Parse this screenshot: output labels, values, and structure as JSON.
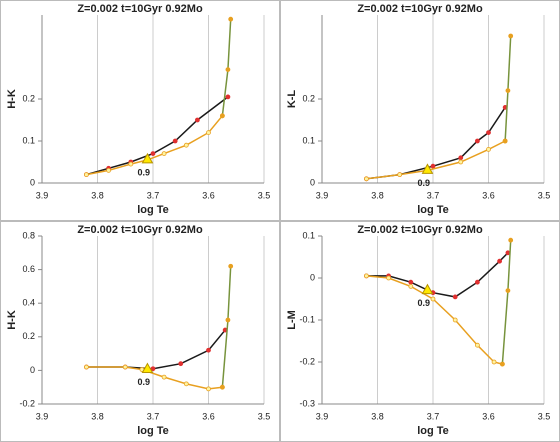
{
  "chart_data": [
    {
      "type": "line",
      "title": "Z=0.002  t=10Gyr 0.92Mo",
      "xlabel": "log Te",
      "ylabel": "H-K",
      "xlim": [
        3.9,
        3.5
      ],
      "xticks": [
        3.9,
        3.8,
        3.7,
        3.6,
        3.5
      ],
      "ylim": [
        0,
        0.4
      ],
      "yticks": [
        0,
        0.1,
        0.2
      ],
      "grid": "x",
      "series": [
        {
          "color": "#1a1a1a",
          "marker_color": "#e03030",
          "x": [
            3.82,
            3.78,
            3.74,
            3.7,
            3.66,
            3.62,
            3.565
          ],
          "values": [
            0.02,
            0.035,
            0.05,
            0.07,
            0.1,
            0.15,
            0.205
          ]
        },
        {
          "color": "#e8a020",
          "marker_color": "#e8a020",
          "x": [
            3.82,
            3.78,
            3.74,
            3.71,
            3.68,
            3.64,
            3.6,
            3.575
          ],
          "values": [
            0.02,
            0.03,
            0.045,
            0.055,
            0.07,
            0.09,
            0.12,
            0.16
          ]
        },
        {
          "color": "#77933c",
          "marker_color": "#e8a020",
          "x": [
            3.575,
            3.565,
            3.56
          ],
          "values": [
            0.16,
            0.27,
            0.39
          ]
        }
      ],
      "annotation": {
        "text": "0.9",
        "x": 3.71,
        "y": 0.055
      }
    },
    {
      "type": "line",
      "title": "Z=0.002  t=10Gyr 0.92Mo",
      "xlabel": "log Te",
      "ylabel": "K-L",
      "xlim": [
        3.9,
        3.5
      ],
      "xticks": [
        3.9,
        3.8,
        3.7,
        3.6,
        3.5
      ],
      "ylim": [
        0,
        0.4
      ],
      "yticks": [
        0,
        0.1,
        0.2
      ],
      "grid": "x",
      "series": [
        {
          "color": "#1a1a1a",
          "marker_color": "#e03030",
          "x": [
            3.82,
            3.76,
            3.7,
            3.65,
            3.62,
            3.6,
            3.57
          ],
          "values": [
            0.01,
            0.02,
            0.04,
            0.06,
            0.1,
            0.12,
            0.18
          ]
        },
        {
          "color": "#e8a020",
          "marker_color": "#e8a020",
          "x": [
            3.82,
            3.76,
            3.71,
            3.65,
            3.6,
            3.57
          ],
          "values": [
            0.01,
            0.02,
            0.03,
            0.05,
            0.08,
            0.1
          ]
        },
        {
          "color": "#77933c",
          "marker_color": "#e8a020",
          "x": [
            3.57,
            3.565,
            3.56
          ],
          "values": [
            0.1,
            0.22,
            0.35
          ]
        }
      ],
      "annotation": {
        "text": "0.9",
        "x": 3.71,
        "y": 0.03
      }
    },
    {
      "type": "line",
      "title": "Z=0.002  t=10Gyr 0.92Mo",
      "xlabel": "log Te",
      "ylabel": "H-K",
      "xlim": [
        3.9,
        3.5
      ],
      "xticks": [
        3.9,
        3.8,
        3.7,
        3.6,
        3.5
      ],
      "ylim": [
        -0.2,
        0.8
      ],
      "yticks": [
        -0.2,
        0,
        0.2,
        0.4,
        0.6,
        0.8
      ],
      "grid": "x",
      "series": [
        {
          "color": "#1a1a1a",
          "marker_color": "#e03030",
          "x": [
            3.82,
            3.75,
            3.7,
            3.65,
            3.6,
            3.57
          ],
          "values": [
            0.02,
            0.02,
            0.01,
            0.04,
            0.12,
            0.24
          ]
        },
        {
          "color": "#e8a020",
          "marker_color": "#e8a020",
          "x": [
            3.82,
            3.75,
            3.72,
            3.68,
            3.64,
            3.6,
            3.575
          ],
          "values": [
            0.02,
            0.02,
            0.005,
            -0.04,
            -0.08,
            -0.11,
            -0.1
          ]
        },
        {
          "color": "#77933c",
          "marker_color": "#e8a020",
          "x": [
            3.575,
            3.565,
            3.56
          ],
          "values": [
            -0.1,
            0.3,
            0.62
          ]
        }
      ],
      "annotation": {
        "text": "0.9",
        "x": 3.71,
        "y": 0.005
      }
    },
    {
      "type": "line",
      "title": "Z=0.002  t=10Gyr 0.92Mo",
      "xlabel": "log Te",
      "ylabel": "L-M",
      "xlim": [
        3.9,
        3.5
      ],
      "xticks": [
        3.9,
        3.8,
        3.7,
        3.6,
        3.5
      ],
      "ylim": [
        -0.3,
        0.1
      ],
      "yticks": [
        -0.3,
        -0.2,
        -0.1,
        0,
        0.1
      ],
      "grid": "x",
      "series": [
        {
          "color": "#1a1a1a",
          "marker_color": "#e03030",
          "x": [
            3.82,
            3.78,
            3.74,
            3.7,
            3.66,
            3.62,
            3.58,
            3.565
          ],
          "values": [
            0.005,
            0.005,
            -0.01,
            -0.035,
            -0.045,
            -0.01,
            0.04,
            0.06
          ]
        },
        {
          "color": "#e8a020",
          "marker_color": "#e8a020",
          "x": [
            3.82,
            3.78,
            3.74,
            3.7,
            3.66,
            3.62,
            3.59,
            3.575
          ],
          "values": [
            0.005,
            0.0,
            -0.02,
            -0.05,
            -0.1,
            -0.16,
            -0.2,
            -0.205
          ]
        },
        {
          "color": "#77933c",
          "marker_color": "#e8a020",
          "x": [
            3.575,
            3.565,
            3.56
          ],
          "values": [
            -0.205,
            -0.03,
            0.09
          ]
        }
      ],
      "annotation": {
        "text": "0.9",
        "x": 3.71,
        "y": -0.03
      }
    }
  ]
}
